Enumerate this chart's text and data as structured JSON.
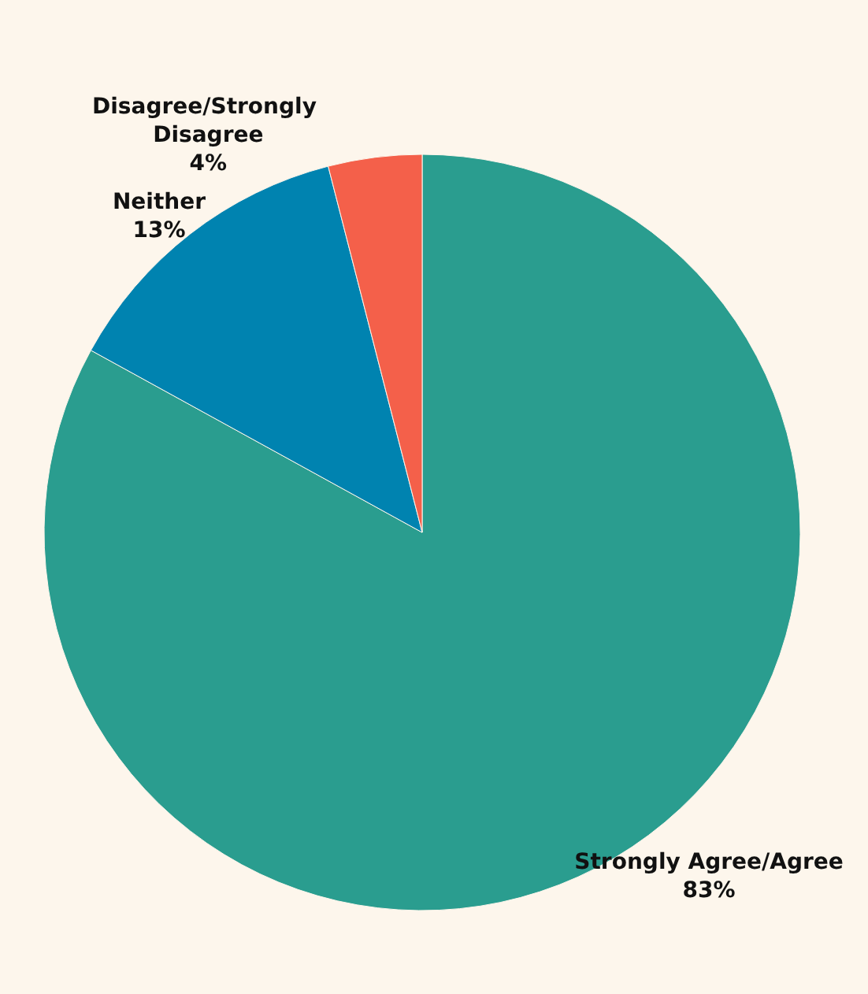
{
  "chart_data": {
    "type": "pie",
    "categories": [
      "Strongly Agree/Agree",
      "Neither",
      "Disagree/Strongly Disagree"
    ],
    "values": [
      83,
      13,
      4
    ],
    "colors": [
      "#2a9d8f",
      "#0083b0",
      "#f4604a"
    ],
    "value_labels": [
      "83%",
      "13%",
      "4%"
    ]
  }
}
